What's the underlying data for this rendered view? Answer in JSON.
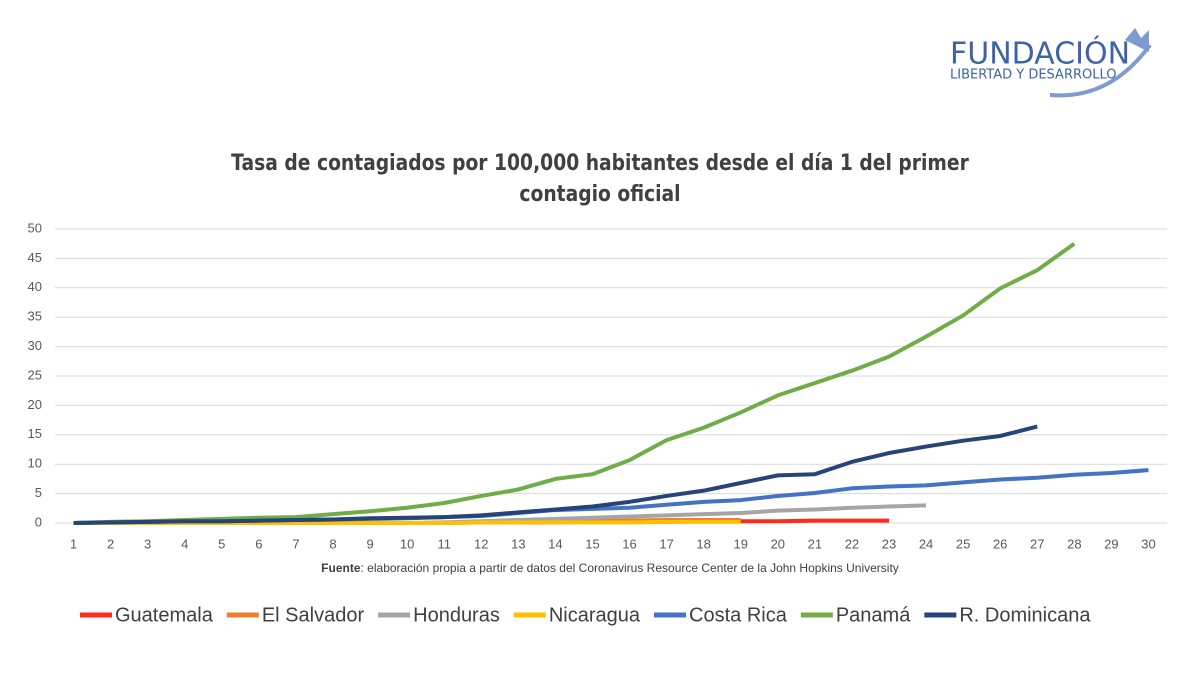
{
  "logo": {
    "title": "Fundación",
    "subtitle": "Libertad y Desarrollo"
  },
  "chart_data": {
    "type": "line",
    "title": "Tasa de contagiados por 100,000 habitantes desde el día 1 del primer contagio oficial",
    "source_label": "Fuente",
    "source": ": elaboración propia a partir de datos del Coronavirus Resource Center de la John Hopkins University",
    "x": [
      1,
      2,
      3,
      4,
      5,
      6,
      7,
      8,
      9,
      10,
      11,
      12,
      13,
      14,
      15,
      16,
      17,
      18,
      19,
      20,
      21,
      22,
      23,
      24,
      25,
      26,
      27,
      28,
      29,
      30
    ],
    "xlim": [
      0.5,
      30.5
    ],
    "xticks": [
      1,
      2,
      3,
      4,
      5,
      6,
      7,
      8,
      9,
      10,
      11,
      12,
      13,
      14,
      15,
      16,
      17,
      18,
      19,
      20,
      21,
      22,
      23,
      24,
      25,
      26,
      27,
      28,
      29,
      30
    ],
    "ylim": [
      0,
      50
    ],
    "yticks": [
      0,
      5,
      10,
      15,
      20,
      25,
      30,
      35,
      40,
      45,
      50
    ],
    "grid": true,
    "series": [
      {
        "name": "Guatemala",
        "color": "#ff2a1a",
        "values": [
          0,
          0,
          0,
          0,
          0,
          0,
          0,
          0,
          0,
          0,
          0,
          0.1,
          0.1,
          0.1,
          0.2,
          0.2,
          0.2,
          0.3,
          0.3,
          0.3,
          0.4,
          0.4,
          0.4,
          null,
          null,
          null,
          null,
          null,
          null,
          null
        ]
      },
      {
        "name": "El Salvador",
        "color": "#ed7d31",
        "values": [
          0,
          0,
          0,
          0,
          0,
          0,
          0,
          0,
          0,
          0,
          0,
          0.2,
          0.3,
          0.4,
          0.4,
          0.4,
          0.5,
          0.5,
          0.5,
          null,
          null,
          null,
          null,
          null,
          null,
          null,
          null,
          null,
          null,
          null
        ]
      },
      {
        "name": "Honduras",
        "color": "#a5a5a5",
        "values": [
          0,
          0,
          0,
          0,
          0,
          0,
          0,
          0,
          0,
          0,
          0.1,
          0.3,
          0.5,
          0.7,
          0.9,
          1.1,
          1.3,
          1.5,
          1.7,
          2.1,
          2.3,
          2.6,
          2.8,
          3.0,
          null,
          null,
          null,
          null,
          null,
          null
        ]
      },
      {
        "name": "Nicaragua",
        "color": "#ffc000",
        "values": [
          0,
          0,
          0,
          0,
          0,
          0,
          0,
          0,
          0,
          0,
          0,
          0.1,
          0.1,
          0.1,
          0.1,
          0.1,
          0.2,
          0.2,
          0.2,
          null,
          null,
          null,
          null,
          null,
          null,
          null,
          null,
          null,
          null,
          null
        ]
      },
      {
        "name": "Costa Rica",
        "color": "#4472c4",
        "values": [
          0,
          0.1,
          0.2,
          0.3,
          0.3,
          0.4,
          0.5,
          0.6,
          0.7,
          0.8,
          1.0,
          1.2,
          1.7,
          2.2,
          2.4,
          2.6,
          3.1,
          3.6,
          3.9,
          4.6,
          5.1,
          5.9,
          6.2,
          6.4,
          6.9,
          7.4,
          7.7,
          8.2,
          8.5,
          9.0
        ]
      },
      {
        "name": "Panamá",
        "color": "#70ad47",
        "values": [
          0,
          0.2,
          0.3,
          0.5,
          0.7,
          0.9,
          1.0,
          1.5,
          2.0,
          2.6,
          3.4,
          4.6,
          5.7,
          7.5,
          8.3,
          10.7,
          14.1,
          16.2,
          18.8,
          21.7,
          23.8,
          25.9,
          28.3,
          31.7,
          35.3,
          39.9,
          43.0,
          47.5,
          null,
          null
        ]
      },
      {
        "name": "R. Dominicana",
        "color": "#264478",
        "values": [
          0,
          0.1,
          0.2,
          0.3,
          0.3,
          0.4,
          0.5,
          0.6,
          0.8,
          0.9,
          1.0,
          1.3,
          1.8,
          2.3,
          2.8,
          3.6,
          4.6,
          5.5,
          6.8,
          8.1,
          8.3,
          10.4,
          11.9,
          13.0,
          14.0,
          14.8,
          16.4,
          null,
          null,
          null
        ]
      }
    ]
  }
}
